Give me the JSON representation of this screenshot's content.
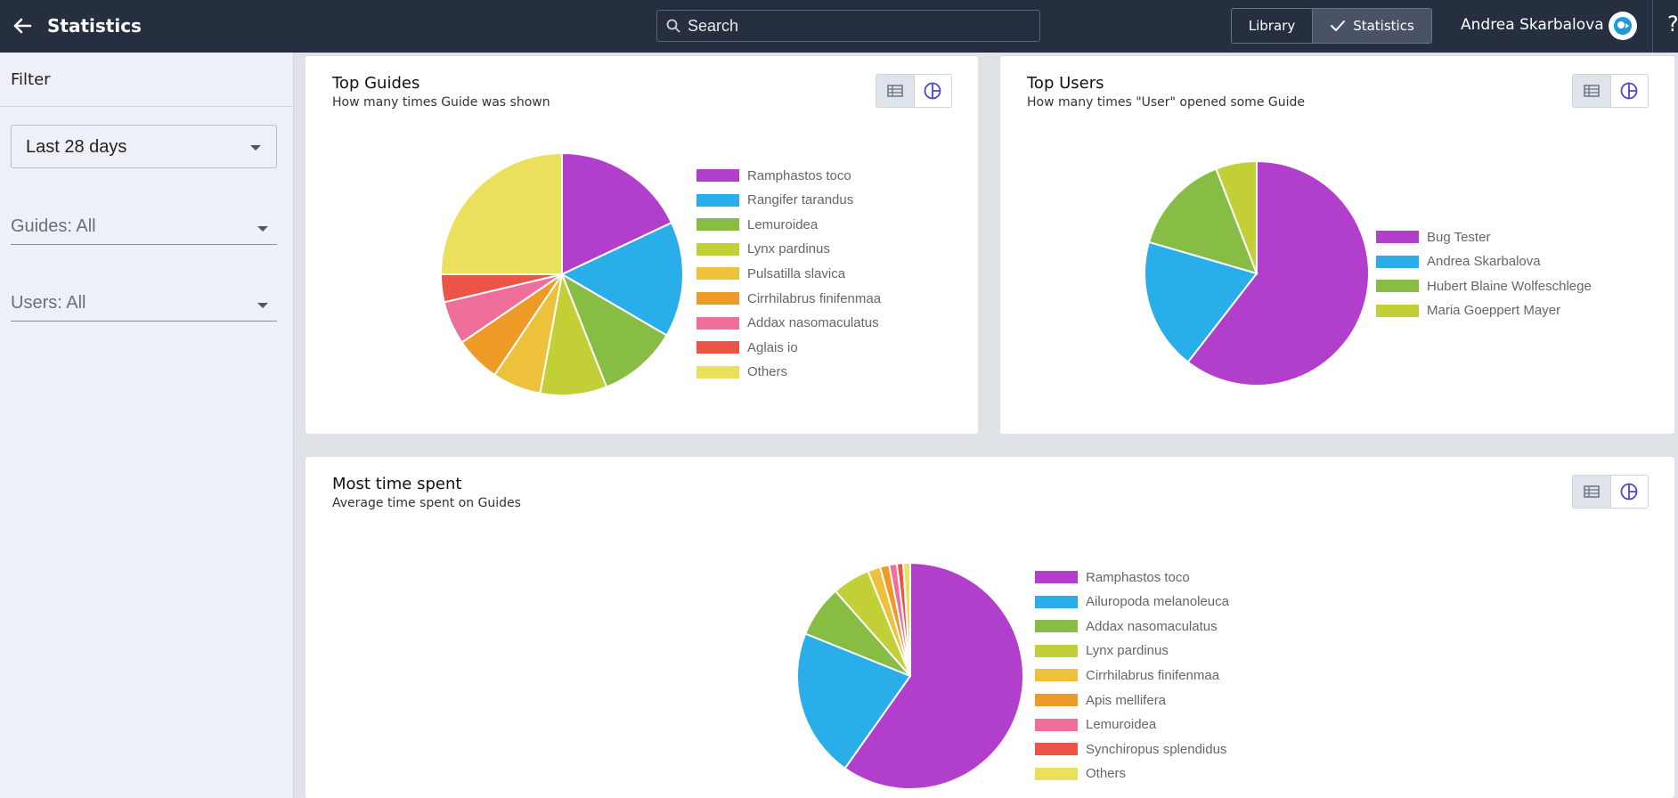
{
  "header": {
    "title": "Statistics",
    "search_placeholder": "Search",
    "nav": {
      "library_label": "Library",
      "statistics_label": "Statistics"
    },
    "user_name": "Andrea Skarbalova",
    "help_label": "?"
  },
  "sidebar": {
    "title": "Filter",
    "period": {
      "value": "Last 28 days"
    },
    "guides": {
      "value": "Guides: All"
    },
    "users": {
      "value": "Users: All"
    }
  },
  "cards": {
    "top_guides": {
      "title": "Top Guides",
      "subtitle": "How many times Guide was shown"
    },
    "top_users": {
      "title": "Top Users",
      "subtitle": "How many times \"User\" opened some Guide"
    },
    "most_time": {
      "title": "Most time spent",
      "subtitle": "Average time spent on Guides"
    }
  },
  "colors": {
    "purple": "#b23fcb",
    "blue": "#29aeea",
    "green": "#87bd44",
    "lime": "#c2cf37",
    "yellow": "#eec13d",
    "orange": "#ee9a26",
    "pink": "#f06f9a",
    "red": "#ec5448",
    "lightyellow": "#ebe05c"
  },
  "chart_data": [
    {
      "type": "pie",
      "title": "Top Guides",
      "legend_position": "right",
      "slices": [
        {
          "label": "Ramphastos toco",
          "value": 18.0,
          "color": "#b23fcb"
        },
        {
          "label": "Rangifer tarandus",
          "value": 15.4,
          "color": "#29aeea"
        },
        {
          "label": "Lemuroidea",
          "value": 10.6,
          "color": "#87bd44"
        },
        {
          "label": "Lynx pardinus",
          "value": 8.9,
          "color": "#c2cf37"
        },
        {
          "label": "Pulsatilla slavica",
          "value": 6.5,
          "color": "#eec13d"
        },
        {
          "label": "Cirrhilabrus finifenmaa",
          "value": 6.1,
          "color": "#ee9a26"
        },
        {
          "label": "Addax nasomaculatus",
          "value": 5.8,
          "color": "#f06f9a"
        },
        {
          "label": "Aglais io",
          "value": 3.7,
          "color": "#ec5448"
        },
        {
          "label": "Others",
          "value": 25.0,
          "color": "#ebe05c"
        }
      ]
    },
    {
      "type": "pie",
      "title": "Top Users",
      "legend_position": "right",
      "slices": [
        {
          "label": "Bug Tester",
          "value": 60.5,
          "color": "#b23fcb"
        },
        {
          "label": "Andrea Skarbalova",
          "value": 19.0,
          "color": "#29aeea"
        },
        {
          "label": "Hubert Blaine Wolfeschlegel",
          "value": 14.6,
          "color": "#87bd44"
        },
        {
          "label": "Maria Goeppert Mayer",
          "value": 5.9,
          "color": "#c2cf37"
        }
      ]
    },
    {
      "type": "pie",
      "title": "Most time spent",
      "legend_position": "right",
      "slices": [
        {
          "label": "Ramphastos toco",
          "value": 59.8,
          "color": "#b23fcb"
        },
        {
          "label": "Ailuropoda melanoleuca",
          "value": 21.3,
          "color": "#29aeea"
        },
        {
          "label": "Addax nasomaculatus",
          "value": 7.4,
          "color": "#87bd44"
        },
        {
          "label": "Lynx pardinus",
          "value": 5.4,
          "color": "#c2cf37"
        },
        {
          "label": "Cirrhilabrus finifenmaa",
          "value": 1.8,
          "color": "#eec13d"
        },
        {
          "label": "Apis mellifera",
          "value": 1.3,
          "color": "#ee9a26"
        },
        {
          "label": "Lemuroidea",
          "value": 1.1,
          "color": "#f06f9a"
        },
        {
          "label": "Synchiropus splendidus",
          "value": 0.9,
          "color": "#ec5448"
        },
        {
          "label": "Others",
          "value": 1.0,
          "color": "#ebe05c"
        }
      ]
    }
  ]
}
